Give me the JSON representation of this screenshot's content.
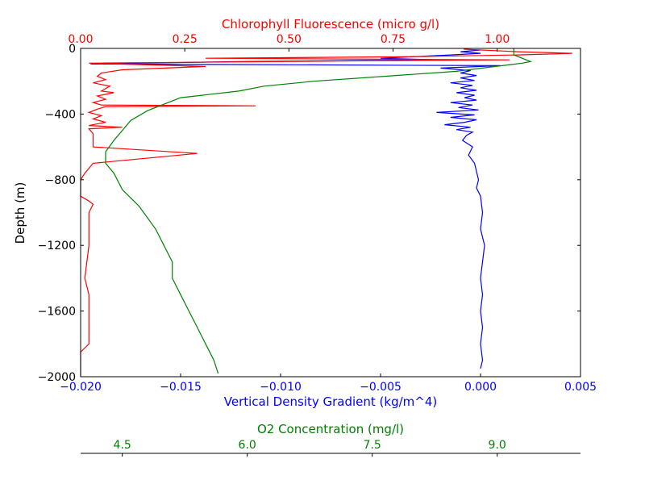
{
  "chart_data": {
    "type": "line",
    "colors": {
      "density": "#0000ff",
      "chlorophyll": "#ff0000",
      "oxygen": "#008000",
      "axis": "#000000"
    },
    "y_axis": {
      "label": "Depth (m)",
      "lim": [
        -2000,
        0
      ],
      "ticks": [
        0,
        -400,
        -800,
        -1200,
        -1600,
        -2000
      ],
      "tick_labels": [
        "0",
        "−400",
        "−800",
        "−1200",
        "−1600",
        "−2000"
      ]
    },
    "x_axes": {
      "density": {
        "label": "Vertical Density Gradient (kg/m^4)",
        "lim": [
          -0.02,
          0.005
        ],
        "ticks": [
          -0.02,
          -0.015,
          -0.01,
          -0.005,
          0.0,
          0.005
        ],
        "tick_labels": [
          "−0.020",
          "−0.015",
          "−0.010",
          "−0.005",
          "0.000",
          "0.005"
        ],
        "position": "bottom"
      },
      "chlorophyll": {
        "label": "Chlorophyll Fluorescence (micro g/l)",
        "lim": [
          0.0,
          1.2
        ],
        "ticks": [
          0.0,
          0.25,
          0.5,
          0.75,
          1.0
        ],
        "tick_labels": [
          "0.00",
          "0.25",
          "0.50",
          "0.75",
          "1.00"
        ],
        "position": "top"
      },
      "oxygen": {
        "label": "O2 Concentration (mg/l)",
        "lim": [
          4.0,
          10.0
        ],
        "ticks": [
          4.5,
          6.0,
          7.5,
          9.0
        ],
        "tick_labels": [
          "4.5",
          "6.0",
          "7.5",
          "9.0"
        ],
        "position": "bottom-offset"
      }
    },
    "series": [
      {
        "key": "density",
        "axis": "density",
        "points": [
          [
            0.0,
            -10
          ],
          [
            -0.001,
            -20
          ],
          [
            0.0,
            -30
          ],
          [
            -0.0015,
            -40
          ],
          [
            -0.005,
            -60
          ],
          [
            -0.002,
            -70
          ],
          [
            -0.012,
            -80
          ],
          [
            -0.0195,
            -95
          ],
          [
            0.001,
            -105
          ],
          [
            -0.002,
            -120
          ],
          [
            -0.0005,
            -135
          ],
          [
            -0.001,
            -150
          ],
          [
            -0.0002,
            -165
          ],
          [
            -0.001,
            -180
          ],
          [
            -0.0003,
            -195
          ],
          [
            -0.0015,
            -210
          ],
          [
            -0.0004,
            -225
          ],
          [
            -0.001,
            -240
          ],
          [
            -0.0002,
            -255
          ],
          [
            -0.0012,
            -270
          ],
          [
            -0.0003,
            -285
          ],
          [
            -0.0008,
            -300
          ],
          [
            -0.0002,
            -315
          ],
          [
            -0.0015,
            -330
          ],
          [
            -0.0004,
            -345
          ],
          [
            -0.0011,
            -360
          ],
          [
            -0.0001,
            -375
          ],
          [
            -0.0022,
            -390
          ],
          [
            -0.0003,
            -405
          ],
          [
            -0.0015,
            -420
          ],
          [
            -0.0002,
            -435
          ],
          [
            -0.0008,
            -450
          ],
          [
            -0.0018,
            -465
          ],
          [
            -0.0005,
            -480
          ],
          [
            -0.0012,
            -495
          ],
          [
            -0.0004,
            -510
          ],
          [
            -0.0007,
            -530
          ],
          [
            -0.0009,
            -560
          ],
          [
            -0.0004,
            -600
          ],
          [
            -0.0006,
            -650
          ],
          [
            -0.0003,
            -700
          ],
          [
            -0.0002,
            -750
          ],
          [
            -0.0001,
            -800
          ],
          [
            -0.0002,
            -850
          ],
          [
            0.0,
            -900
          ],
          [
            0.0001,
            -1000
          ],
          [
            0.0,
            -1100
          ],
          [
            0.0002,
            -1200
          ],
          [
            0.0001,
            -1300
          ],
          [
            0.0,
            -1400
          ],
          [
            0.0001,
            -1500
          ],
          [
            0.0,
            -1600
          ],
          [
            0.0001,
            -1700
          ],
          [
            0.0,
            -1800
          ],
          [
            0.0001,
            -1900
          ],
          [
            0.0,
            -1950
          ]
        ]
      },
      {
        "key": "chlorophyll",
        "axis": "chlorophyll",
        "points": [
          [
            0.92,
            -5
          ],
          [
            1.05,
            -20
          ],
          [
            1.18,
            -30
          ],
          [
            1.05,
            -40
          ],
          [
            0.8,
            -50
          ],
          [
            0.3,
            -60
          ],
          [
            1.03,
            -70
          ],
          [
            0.7,
            -75
          ],
          [
            0.02,
            -90
          ],
          [
            0.3,
            -110
          ],
          [
            0.1,
            -130
          ],
          [
            0.05,
            -150
          ],
          [
            0.04,
            -170
          ],
          [
            0.06,
            -190
          ],
          [
            0.03,
            -210
          ],
          [
            0.07,
            -230
          ],
          [
            0.05,
            -260
          ],
          [
            0.08,
            -270
          ],
          [
            0.04,
            -290
          ],
          [
            0.06,
            -310
          ],
          [
            0.03,
            -330
          ],
          [
            0.05,
            -345
          ],
          [
            0.42,
            -350
          ],
          [
            0.06,
            -355
          ],
          [
            0.04,
            -370
          ],
          [
            0.02,
            -390
          ],
          [
            0.05,
            -410
          ],
          [
            0.03,
            -430
          ],
          [
            0.06,
            -450
          ],
          [
            0.02,
            -470
          ],
          [
            0.1,
            -480
          ],
          [
            0.02,
            -490
          ],
          [
            0.03,
            -520
          ],
          [
            0.03,
            -600
          ],
          [
            0.28,
            -640
          ],
          [
            0.03,
            -700
          ],
          [
            0.01,
            -760
          ],
          [
            0.0,
            -800
          ],
          [
            0.0,
            -900
          ],
          [
            0.02,
            -930
          ],
          [
            0.03,
            -950
          ],
          [
            0.02,
            -1000
          ],
          [
            0.02,
            -1200
          ],
          [
            0.01,
            -1400
          ],
          [
            0.02,
            -1500
          ],
          [
            0.02,
            -1700
          ],
          [
            0.02,
            -1800
          ],
          [
            0.0,
            -1850
          ],
          [
            0.0,
            -2000
          ]
        ]
      },
      {
        "key": "oxygen",
        "axis": "oxygen",
        "points": [
          [
            9.2,
            0
          ],
          [
            9.2,
            -40
          ],
          [
            9.4,
            -80
          ],
          [
            9.3,
            -90
          ],
          [
            8.5,
            -140
          ],
          [
            6.8,
            -200
          ],
          [
            6.2,
            -230
          ],
          [
            5.9,
            -260
          ],
          [
            5.2,
            -300
          ],
          [
            5.0,
            -340
          ],
          [
            4.8,
            -380
          ],
          [
            4.6,
            -440
          ],
          [
            4.5,
            -500
          ],
          [
            4.4,
            -560
          ],
          [
            4.3,
            -630
          ],
          [
            4.3,
            -700
          ],
          [
            4.4,
            -760
          ],
          [
            4.5,
            -860
          ],
          [
            4.7,
            -960
          ],
          [
            4.9,
            -1100
          ],
          [
            5.0,
            -1200
          ],
          [
            5.1,
            -1300
          ],
          [
            5.1,
            -1400
          ],
          [
            5.2,
            -1500
          ],
          [
            5.3,
            -1600
          ],
          [
            5.4,
            -1700
          ],
          [
            5.5,
            -1800
          ],
          [
            5.6,
            -1900
          ],
          [
            5.65,
            -1980
          ]
        ]
      }
    ]
  }
}
